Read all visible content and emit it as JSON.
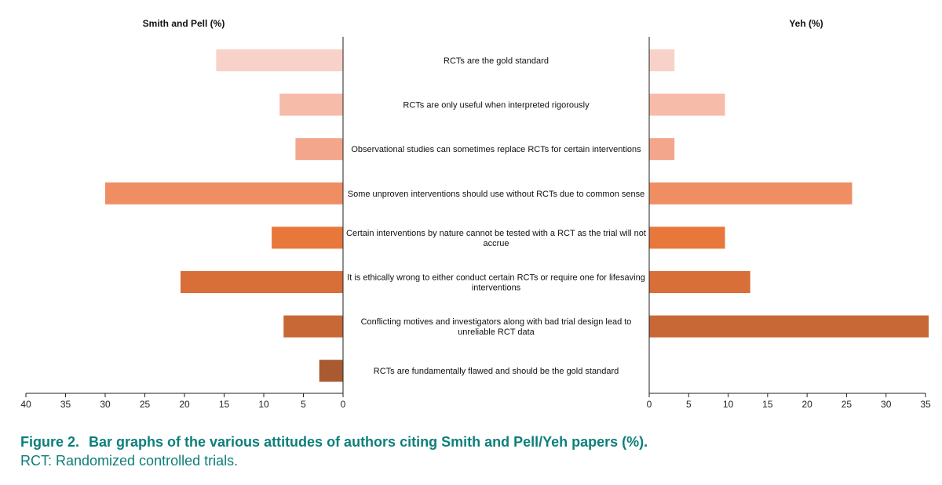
{
  "chart_data": {
    "type": "bar",
    "orientation": "horizontal",
    "layout": "back-to-back",
    "categories": [
      [
        "RCTs are the gold standard"
      ],
      [
        "RCTs are only useful when interpreted rigorously"
      ],
      [
        "Observational studies can sometimes replace RCTs for certain interventions"
      ],
      [
        "Some unproven interventions should use without RCTs due to common sense"
      ],
      [
        "Certain interventions by nature cannot be tested with a RCT as the trial will not",
        "accrue"
      ],
      [
        "It is ethically wrong to either conduct certain RCTs or require one for lifesaving",
        "interventions"
      ],
      [
        "Conflicting motives and investigators along with bad trial design lead to",
        "unreliable RCT data"
      ],
      [
        "RCTs are fundamentally flawed and should be the gold standard"
      ]
    ],
    "colors": [
      "#f8d2c8",
      "#f6bba9",
      "#f3a68c",
      "#ef8e63",
      "#e8773c",
      "#d86e38",
      "#c76836",
      "#a95a31"
    ],
    "series": [
      {
        "name": "Smith and Pell (%)",
        "values": [
          16,
          8,
          6,
          30,
          9,
          20.5,
          7.5,
          3
        ],
        "xlim": [
          40,
          0
        ],
        "ticks": [
          40,
          35,
          30,
          25,
          20,
          15,
          10,
          5,
          0
        ]
      },
      {
        "name": "Yeh (%)",
        "values": [
          3.2,
          9.6,
          3.2,
          25.7,
          9.6,
          12.8,
          35.4,
          0
        ],
        "xlim": [
          0,
          35
        ],
        "ticks": [
          0,
          5,
          10,
          15,
          20,
          25,
          30,
          35
        ]
      }
    ]
  },
  "caption": {
    "figure_number": "Figure 2.",
    "title": "Bar graphs of the various attitudes of authors citing Smith and Pell/Yeh papers (%).",
    "note": "RCT: Randomized controlled trials."
  }
}
